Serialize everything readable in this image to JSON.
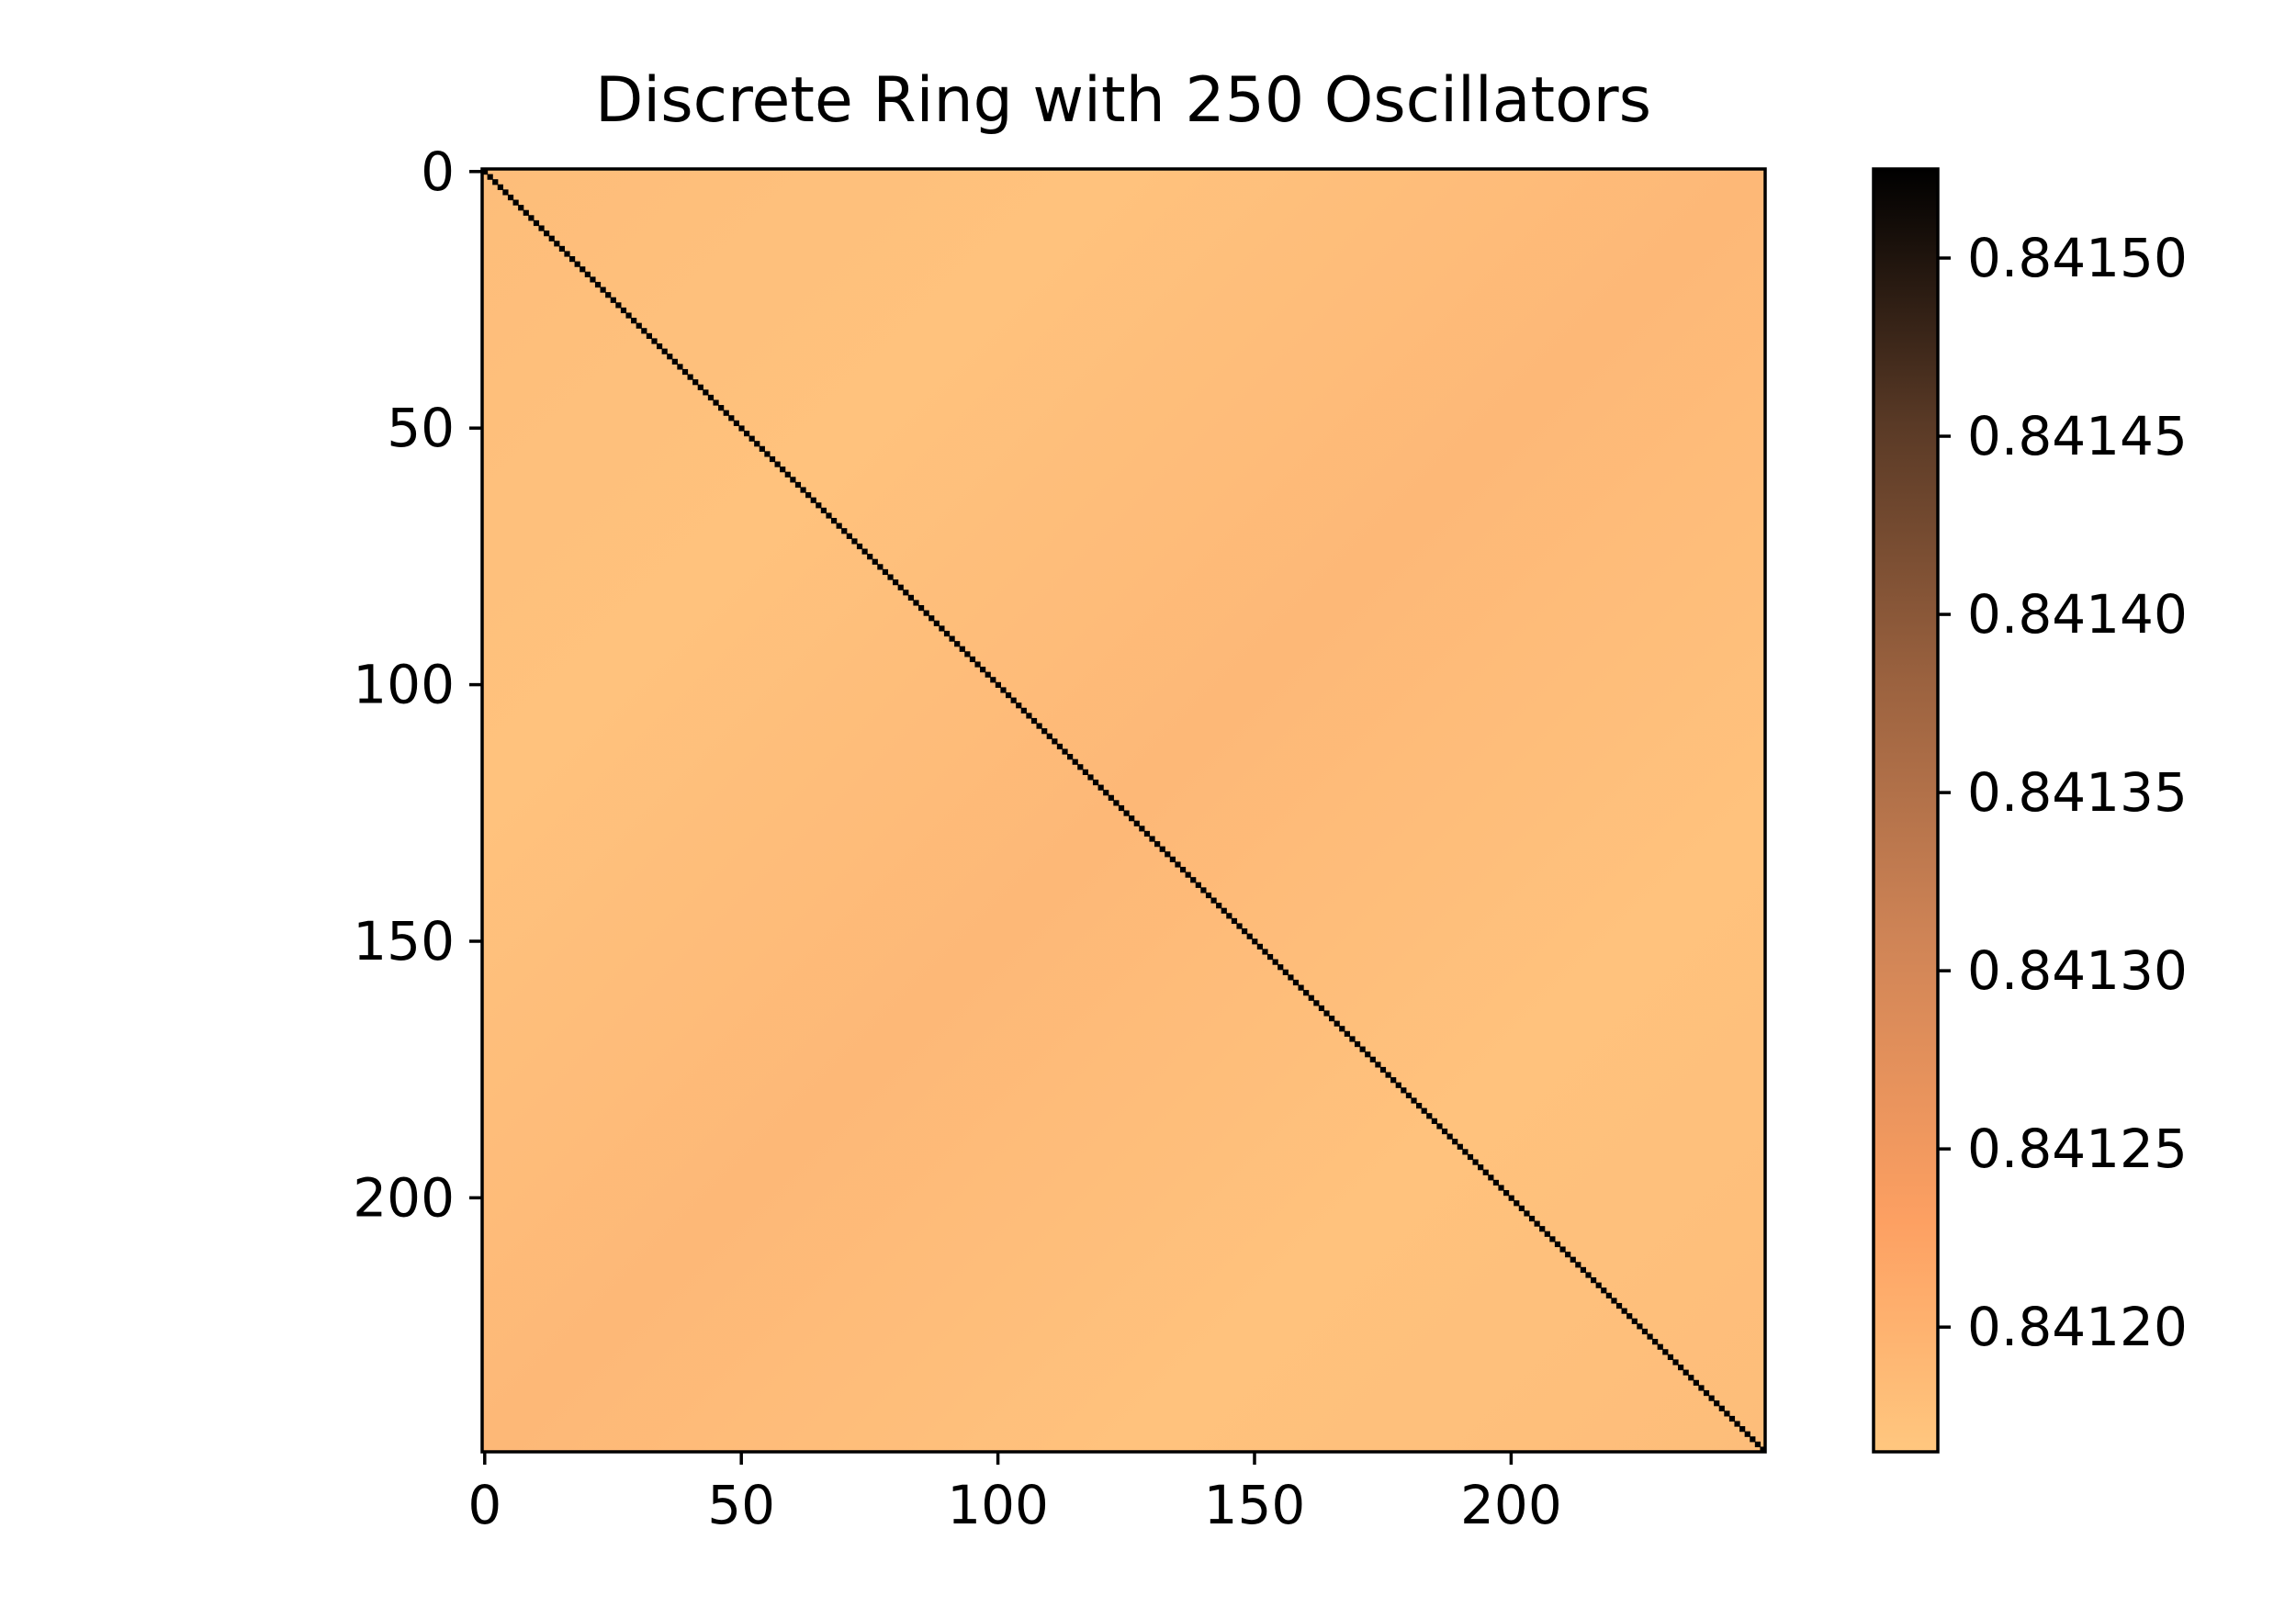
{
  "chart_data": {
    "type": "heatmap",
    "title": "Discrete Ring with 250 Oscillators",
    "xlabel": "",
    "ylabel": "",
    "rows": 250,
    "cols": 250,
    "x_ticks": [
      0,
      50,
      100,
      150,
      200
    ],
    "y_ticks": [
      0,
      50,
      100,
      150,
      200
    ],
    "x_tick_labels": [
      "0",
      "50",
      "100",
      "150",
      "200"
    ],
    "y_tick_labels": [
      "0",
      "50",
      "100",
      "150",
      "200"
    ],
    "xlim": [
      -0.5,
      249.5
    ],
    "ylim": [
      249.5,
      -0.5
    ],
    "diagonal_value": 0.841525,
    "off_diagonal_value_range": [
      0.84117,
      0.84124
    ],
    "colormap": "copper_r",
    "colorbar": {
      "vmin": 0.841165,
      "vmax": 0.841525,
      "ticks": [
        0.8412,
        0.84125,
        0.8413,
        0.84135,
        0.8414,
        0.84145,
        0.8415
      ],
      "tick_labels": [
        "0.84120",
        "0.84125",
        "0.84130",
        "0.84135",
        "0.84140",
        "0.84145",
        "0.84150"
      ],
      "color_high": "#000000",
      "color_low": "#ffc77f"
    },
    "grid": false
  }
}
